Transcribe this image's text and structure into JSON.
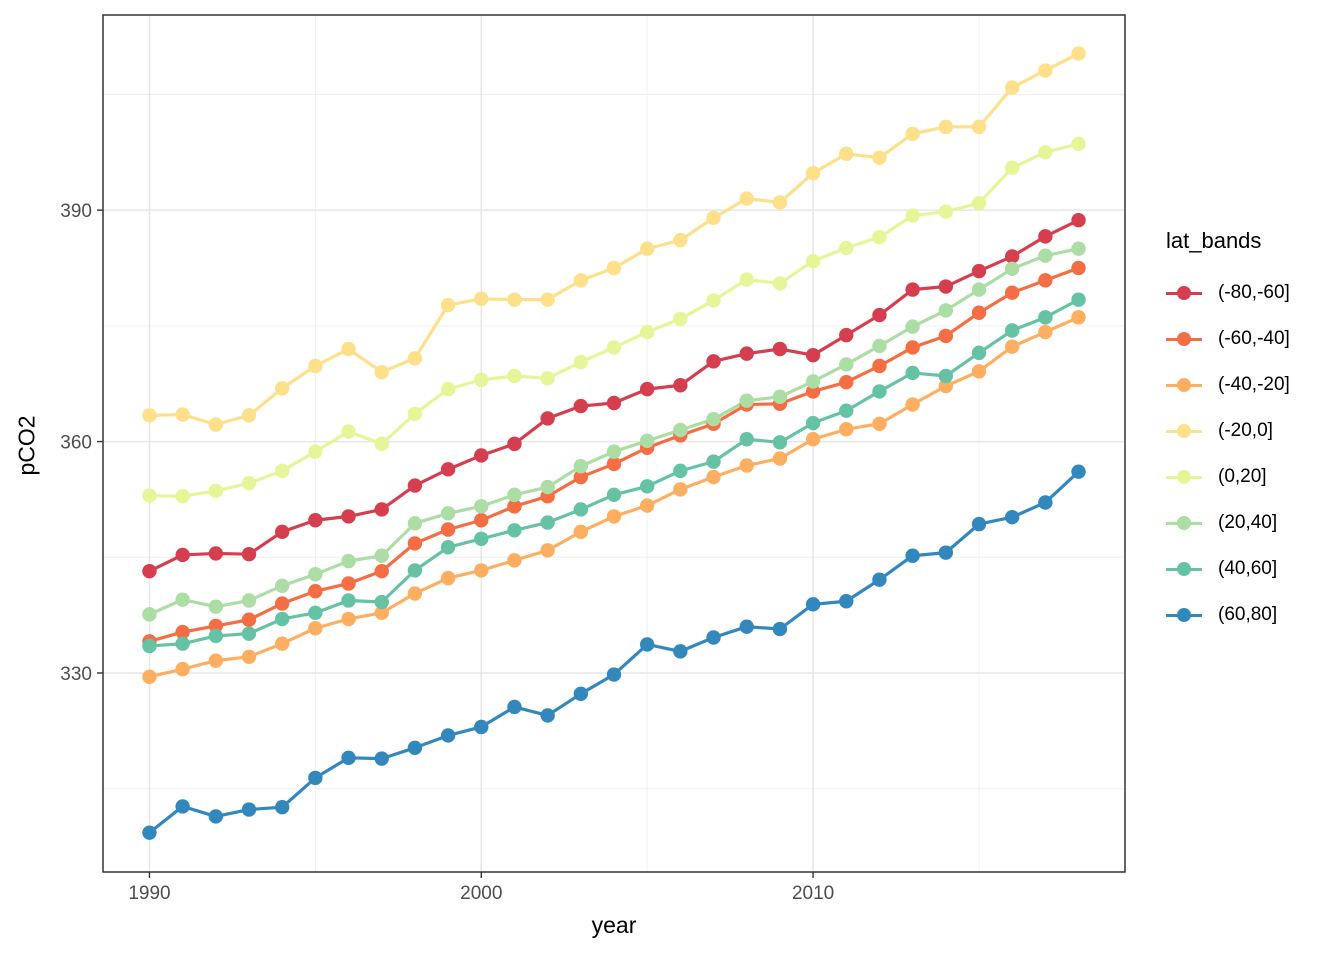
{
  "chart_data": {
    "type": "line",
    "title": "",
    "xlabel": "year",
    "ylabel": "pCO2",
    "legend_title": "lat_bands",
    "legend_position": "right",
    "grid": true,
    "x_range": [
      1988.6,
      2019.4
    ],
    "y_range": [
      304.2,
      415.3
    ],
    "x_ticks": [
      1990,
      2000,
      2010
    ],
    "x_minor_ticks": [
      1995,
      2005,
      2015
    ],
    "y_ticks": [
      330,
      360,
      390
    ],
    "y_minor_ticks": [
      315,
      345,
      375,
      405
    ],
    "x": [
      1990,
      1991,
      1992,
      1993,
      1994,
      1995,
      1996,
      1997,
      1998,
      1999,
      2000,
      2001,
      2002,
      2003,
      2004,
      2005,
      2006,
      2007,
      2008,
      2009,
      2010,
      2011,
      2012,
      2013,
      2014,
      2015,
      2016,
      2017,
      2018
    ],
    "series": [
      {
        "name": "(-80,-60]",
        "color": "#D53E4F",
        "values": [
          343.2,
          345.3,
          345.5,
          345.4,
          348.3,
          349.8,
          350.3,
          351.2,
          354.3,
          356.4,
          358.2,
          359.7,
          363.0,
          364.6,
          365.0,
          366.8,
          367.3,
          370.4,
          371.4,
          372.0,
          371.2,
          373.8,
          376.4,
          379.7,
          380.1,
          382.1,
          384.0,
          386.6,
          388.7
        ]
      },
      {
        "name": "(-60,-40]",
        "color": "#F46D43",
        "values": [
          334.1,
          335.3,
          336.1,
          336.9,
          339.0,
          340.6,
          341.6,
          343.2,
          346.8,
          348.6,
          349.8,
          351.6,
          352.9,
          355.4,
          357.1,
          359.2,
          360.8,
          362.3,
          364.8,
          364.9,
          366.5,
          367.7,
          369.8,
          372.2,
          373.7,
          376.7,
          379.3,
          380.9,
          382.5
        ]
      },
      {
        "name": "(-40,-20]",
        "color": "#FDAE61",
        "values": [
          329.5,
          330.5,
          331.6,
          332.1,
          333.8,
          335.8,
          337.0,
          337.8,
          340.3,
          342.3,
          343.3,
          344.6,
          345.9,
          348.3,
          350.3,
          351.7,
          353.8,
          355.4,
          356.9,
          357.8,
          360.3,
          361.6,
          362.3,
          364.8,
          367.2,
          369.1,
          372.3,
          374.2,
          376.1
        ]
      },
      {
        "name": "(-20,0]",
        "color": "#FEE08B",
        "values": [
          363.4,
          363.5,
          362.2,
          363.4,
          366.9,
          369.8,
          372.0,
          369.0,
          370.8,
          377.7,
          378.5,
          378.4,
          378.4,
          380.9,
          382.5,
          385.0,
          386.1,
          389.0,
          391.5,
          391.0,
          394.8,
          397.3,
          396.8,
          399.9,
          400.8,
          400.8,
          405.9,
          408.1,
          410.3
        ]
      },
      {
        "name": "(0,20]",
        "color": "#E6F598",
        "values": [
          353.0,
          352.9,
          353.6,
          354.6,
          356.2,
          358.7,
          361.3,
          359.7,
          363.6,
          366.8,
          368.0,
          368.5,
          368.2,
          370.3,
          372.2,
          374.2,
          375.9,
          378.3,
          381.0,
          380.5,
          383.4,
          385.1,
          386.5,
          389.3,
          389.8,
          390.9,
          395.5,
          397.5,
          398.6
        ]
      },
      {
        "name": "(20,40]",
        "color": "#ABDDA4",
        "values": [
          337.6,
          339.5,
          338.6,
          339.4,
          341.3,
          342.8,
          344.5,
          345.2,
          349.4,
          350.7,
          351.6,
          353.1,
          354.1,
          356.8,
          358.7,
          360.1,
          361.5,
          362.9,
          365.3,
          365.8,
          367.8,
          370.0,
          372.4,
          374.9,
          377.0,
          379.7,
          382.4,
          384.1,
          385.0
        ]
      },
      {
        "name": "(40,60]",
        "color": "#66C2A5",
        "values": [
          333.5,
          333.8,
          334.8,
          335.1,
          337.0,
          337.8,
          339.4,
          339.2,
          343.3,
          346.3,
          347.4,
          348.5,
          349.5,
          351.2,
          353.1,
          354.2,
          356.2,
          357.4,
          360.3,
          359.9,
          362.4,
          364.0,
          366.5,
          368.9,
          368.5,
          371.5,
          374.4,
          376.1,
          378.4
        ]
      },
      {
        "name": "(60,80]",
        "color": "#3288BD",
        "values": [
          309.3,
          312.7,
          311.4,
          312.3,
          312.6,
          316.4,
          319.0,
          318.9,
          320.3,
          321.9,
          323.0,
          325.6,
          324.5,
          327.3,
          329.8,
          333.7,
          332.8,
          334.6,
          336.0,
          335.7,
          338.9,
          339.3,
          342.1,
          345.2,
          345.6,
          349.3,
          350.2,
          352.1,
          356.1
        ]
      }
    ],
    "theme": {
      "panel_background": "#FFFFFF",
      "panel_border": "#333333",
      "grid_major": "#E6E6E6",
      "grid_minor": "#F0F0F0",
      "tick_label_color": "#4D4D4D",
      "axis_title_color": "#000000"
    }
  }
}
